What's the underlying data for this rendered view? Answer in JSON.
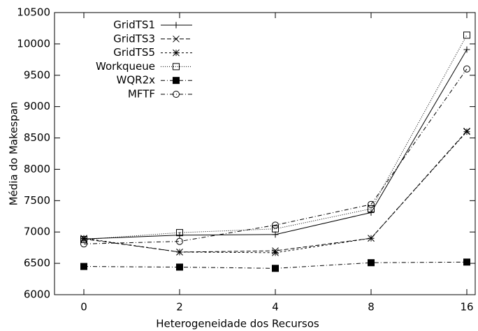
{
  "chart_data": {
    "type": "line",
    "xlabel": "Heterogeneidade dos Recursos",
    "ylabel": "Média do Makespan",
    "categories": [
      "0",
      "2",
      "4",
      "8",
      "16"
    ],
    "ylim": [
      6000,
      10500
    ],
    "yticks": [
      6000,
      6500,
      7000,
      7500,
      8000,
      8500,
      9000,
      9500,
      10000,
      10500
    ],
    "legend": "upper left",
    "series": [
      {
        "name": "GridTS1",
        "color": "#000000",
        "marker": "plus",
        "dash": "solid",
        "values": [
          6890,
          6950,
          6960,
          7310,
          9910
        ]
      },
      {
        "name": "GridTS3",
        "color": "#000000",
        "marker": "cross",
        "dash": "dashed",
        "values": [
          6890,
          6680,
          6700,
          6900,
          8610
        ]
      },
      {
        "name": "GridTS5",
        "color": "#000000",
        "marker": "star",
        "dash": "short-dashed",
        "values": [
          6900,
          6680,
          6670,
          6900,
          8600
        ]
      },
      {
        "name": "Workqueue",
        "color": "#000000",
        "marker": "square",
        "dash": "dotted",
        "values": [
          6880,
          6990,
          7050,
          7370,
          10140
        ]
      },
      {
        "name": "WQR2x",
        "color": "#000000",
        "marker": "filled-square",
        "dash": "dash-dot",
        "values": [
          6450,
          6440,
          6420,
          6510,
          6520
        ]
      },
      {
        "name": "MFTF",
        "color": "#000000",
        "marker": "circle",
        "dash": "dash-dot",
        "values": [
          6810,
          6850,
          7110,
          7440,
          9600
        ]
      }
    ]
  }
}
